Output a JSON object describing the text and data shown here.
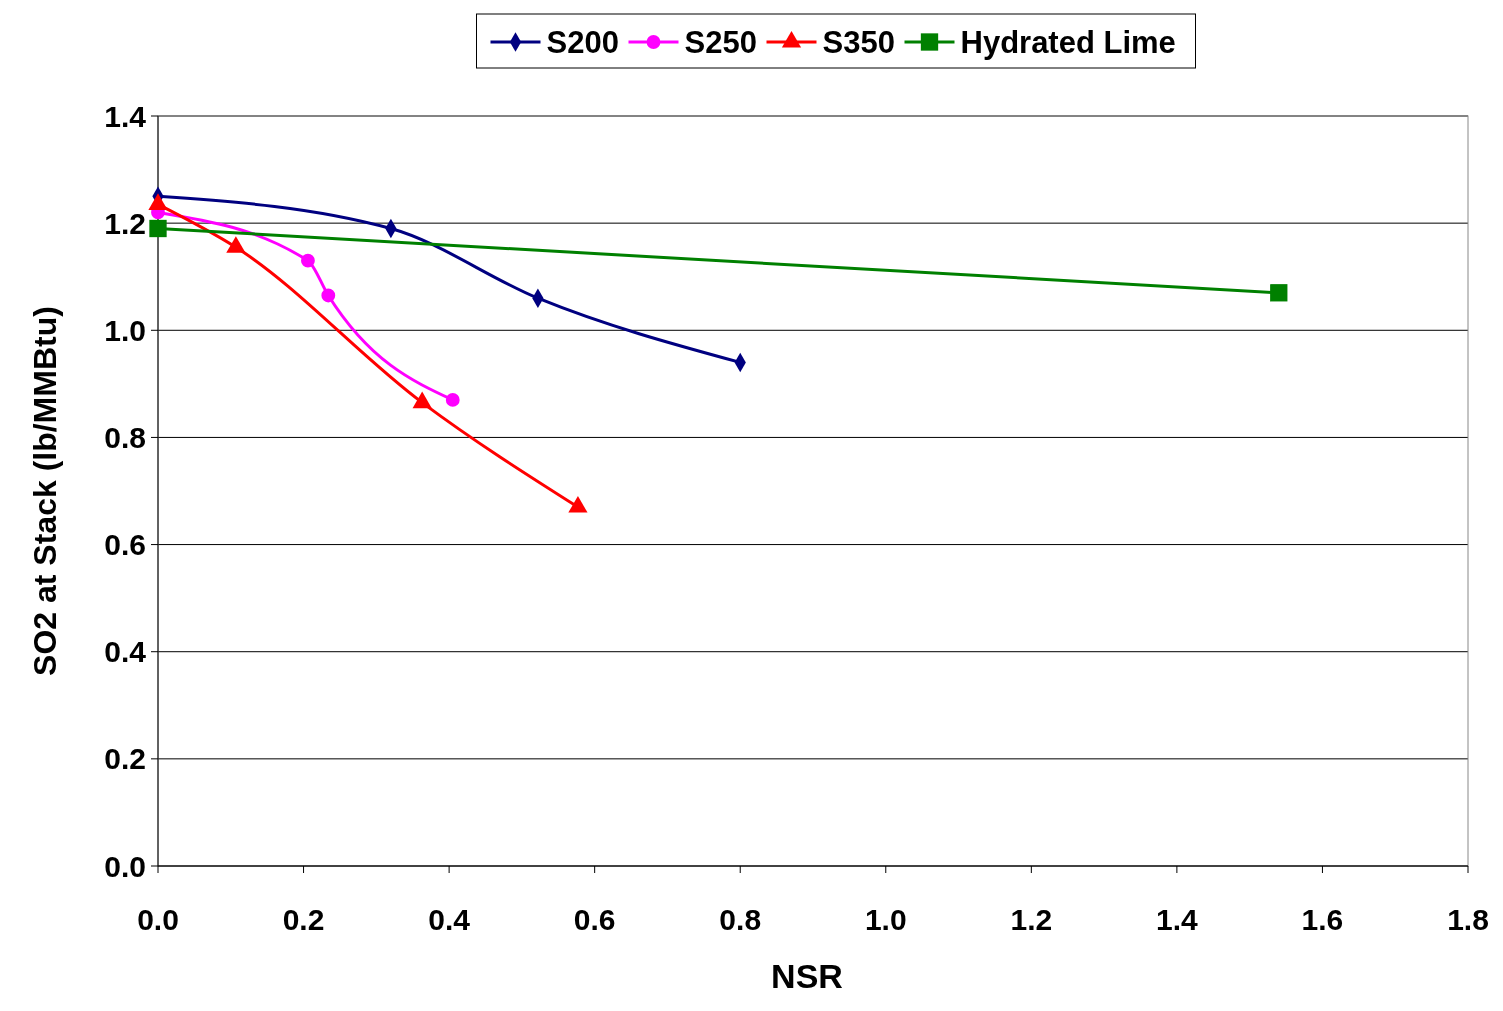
{
  "chart_data": {
    "type": "line",
    "xlabel": "NSR",
    "ylabel": "SO2 at Stack (lb/MMBtu)",
    "xlim": [
      0,
      1.8
    ],
    "xticks": [
      {
        "value": 0,
        "label": "0.0"
      },
      0.2,
      0.4,
      0.6,
      0.8,
      {
        "value": 1,
        "label": "1.0"
      },
      1.2,
      1.4,
      1.6,
      1.8
    ],
    "ylim": [
      0,
      1.4
    ],
    "yticks": [
      {
        "value": 0,
        "label": "0.0"
      },
      0.2,
      0.4,
      0.6,
      0.8,
      {
        "value": 1,
        "label": "1.0"
      },
      1.2,
      1.4
    ],
    "grid": "y",
    "legend": "top",
    "line_style": "solid",
    "series": [
      {
        "name": "S200",
        "color": "#000080",
        "marker": "diamond",
        "x": [
          0,
          0.32,
          0.522,
          0.8
        ],
        "values": [
          1.25,
          1.19,
          1.06,
          0.94
        ]
      },
      {
        "name": "S250",
        "color": "#ff00ff",
        "marker": "circle",
        "x": [
          0,
          0.206,
          0.234,
          0.405
        ],
        "values": [
          1.22,
          1.13,
          1.065,
          0.87
        ]
      },
      {
        "name": "S350",
        "color": "#ff0000",
        "marker": "triangle",
        "x": [
          0,
          0.107,
          0.363,
          0.577
        ],
        "values": [
          1.235,
          1.155,
          0.865,
          0.67
        ]
      },
      {
        "name": "Hydrated Lime",
        "color": "#008000",
        "marker": "square",
        "x": [
          0,
          1.54
        ],
        "values": [
          1.19,
          1.07
        ]
      }
    ]
  }
}
